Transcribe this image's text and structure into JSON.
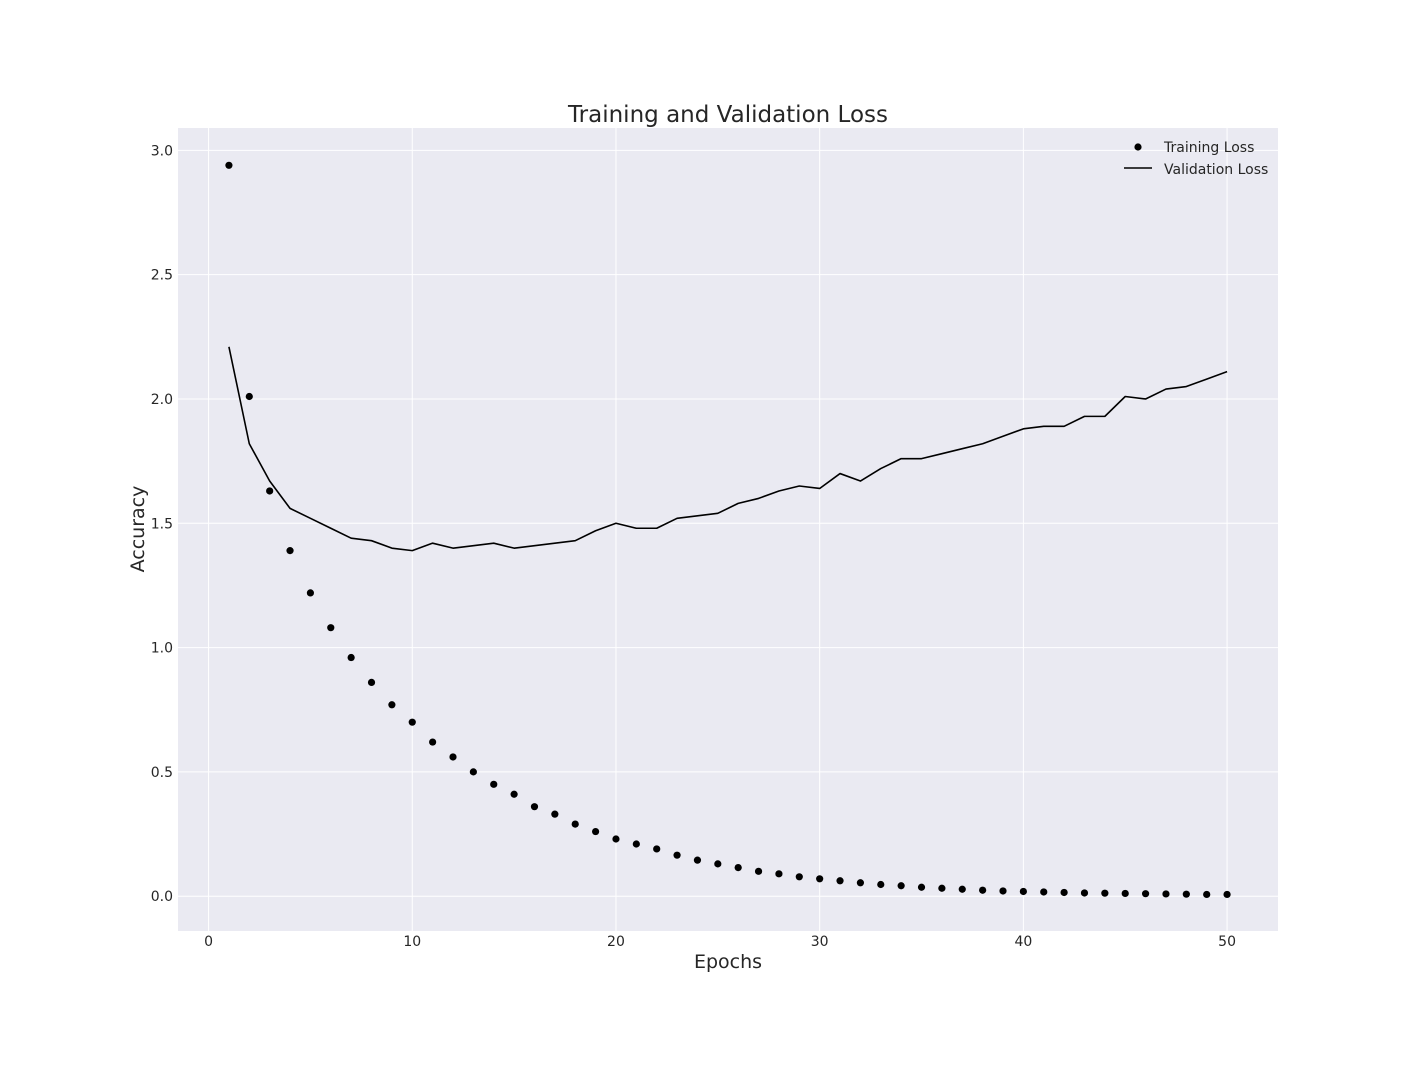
{
  "chart_data": {
    "type": "line",
    "title": "Training and Validation Loss",
    "xlabel": "Epochs",
    "ylabel": "Accuracy",
    "xlim": [
      -1.5,
      52.5
    ],
    "ylim": [
      -0.14,
      3.09
    ],
    "xticks": [
      0,
      10,
      20,
      30,
      40,
      50
    ],
    "xtick_labels": [
      "0",
      "10",
      "20",
      "30",
      "40",
      "50"
    ],
    "yticks": [
      0.0,
      0.5,
      1.0,
      1.5,
      2.0,
      2.5,
      3.0
    ],
    "ytick_labels": [
      "0.0",
      "0.5",
      "1.0",
      "1.5",
      "2.0",
      "2.5",
      "3.0"
    ],
    "grid": true,
    "legend_position": "top-right",
    "x": [
      1,
      2,
      3,
      4,
      5,
      6,
      7,
      8,
      9,
      10,
      11,
      12,
      13,
      14,
      15,
      16,
      17,
      18,
      19,
      20,
      21,
      22,
      23,
      24,
      25,
      26,
      27,
      28,
      29,
      30,
      31,
      32,
      33,
      34,
      35,
      36,
      37,
      38,
      39,
      40,
      41,
      42,
      43,
      44,
      45,
      46,
      47,
      48,
      49,
      50
    ],
    "series": [
      {
        "name": "Training Loss",
        "style": "points",
        "color": "#000000",
        "values": [
          2.94,
          2.01,
          1.63,
          1.39,
          1.22,
          1.08,
          0.96,
          0.86,
          0.77,
          0.7,
          0.62,
          0.56,
          0.5,
          0.45,
          0.41,
          0.36,
          0.33,
          0.29,
          0.26,
          0.23,
          0.21,
          0.19,
          0.165,
          0.145,
          0.13,
          0.115,
          0.1,
          0.09,
          0.078,
          0.07,
          0.062,
          0.054,
          0.047,
          0.042,
          0.036,
          0.032,
          0.028,
          0.024,
          0.021,
          0.019,
          0.017,
          0.015,
          0.013,
          0.012,
          0.011,
          0.01,
          0.009,
          0.008,
          0.007,
          0.007
        ]
      },
      {
        "name": "Validation Loss",
        "style": "line",
        "color": "#000000",
        "values": [
          2.21,
          1.82,
          1.67,
          1.56,
          1.52,
          1.48,
          1.44,
          1.43,
          1.4,
          1.39,
          1.42,
          1.4,
          1.41,
          1.42,
          1.4,
          1.41,
          1.42,
          1.43,
          1.47,
          1.5,
          1.48,
          1.48,
          1.52,
          1.53,
          1.54,
          1.58,
          1.6,
          1.63,
          1.65,
          1.64,
          1.7,
          1.67,
          1.72,
          1.76,
          1.76,
          1.78,
          1.8,
          1.82,
          1.85,
          1.88,
          1.89,
          1.89,
          1.93,
          1.93,
          2.01,
          2.0,
          2.04,
          2.05,
          2.08,
          2.11
        ]
      }
    ]
  },
  "colors": {
    "plot_background": "#eaeaf2",
    "grid": "#ffffff",
    "text": "#262626",
    "marks": "#000000"
  }
}
